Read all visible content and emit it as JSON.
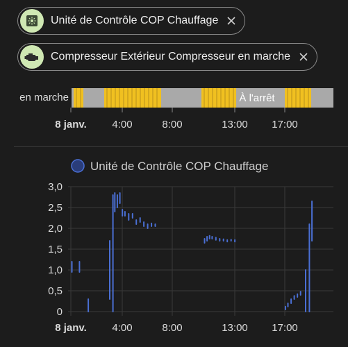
{
  "chips": [
    {
      "label": "Unité de Contrôle COP Chauffage",
      "icon": "gauge-square-icon"
    },
    {
      "label": "Compresseur Extérieur Compresseur en marche",
      "icon": "engine-icon"
    }
  ],
  "timeline": {
    "state_label": "en marche",
    "off_label": "À l'arrêt",
    "on_color": "#f0c020",
    "off_color": "#a9a9a9",
    "x_ticks": [
      "8 janv.",
      "4:00",
      "8:00",
      "13:00",
      "17:00"
    ]
  },
  "chart_data": {
    "type": "line",
    "title": "Unité de Contrôle COP Chauffage",
    "legend": [
      "Unité de Contrôle COP Chauffage"
    ],
    "series_color": "#4a6fd4",
    "y_ticks": [
      "3,0",
      "2,5",
      "2,0",
      "1,5",
      "1,0",
      "0,5",
      "0"
    ],
    "ylim": [
      0,
      3
    ],
    "x_ticks": [
      "8 janv.",
      "4:00",
      "8:00",
      "13:00",
      "17:00"
    ],
    "x_unit": "hours since 8 janv. 0:00",
    "xlim": [
      -0.1,
      20.9
    ],
    "series": [
      {
        "name": "Unité de Contrôle COP Chauffage",
        "segments": [
          [
            [
              0.2,
              0.95
            ],
            [
              0.2,
              1.2
            ]
          ],
          [
            [
              0.8,
              0.95
            ],
            [
              0.8,
              1.2
            ]
          ],
          [
            [
              1.5,
              0.0
            ],
            [
              1.5,
              0.3
            ]
          ],
          [
            [
              3.2,
              0.3
            ],
            [
              3.2,
              1.7
            ]
          ],
          [
            [
              3.45,
              0.0
            ],
            [
              3.45,
              2.8
            ]
          ],
          [
            [
              3.6,
              2.4
            ],
            [
              3.6,
              2.85
            ]
          ],
          [
            [
              3.8,
              2.5
            ],
            [
              3.8,
              2.8
            ]
          ],
          [
            [
              4.0,
              2.6
            ],
            [
              4.0,
              2.85
            ]
          ],
          [
            [
              4.2,
              2.3
            ],
            [
              4.2,
              2.45
            ]
          ],
          [
            [
              4.4,
              2.3
            ],
            [
              4.4,
              2.4
            ]
          ],
          [
            [
              4.7,
              2.2
            ],
            [
              4.7,
              2.35
            ]
          ],
          [
            [
              5.0,
              2.25
            ],
            [
              5.0,
              2.35
            ]
          ],
          [
            [
              5.3,
              2.1
            ],
            [
              5.3,
              2.2
            ]
          ],
          [
            [
              5.6,
              2.15
            ],
            [
              5.6,
              2.25
            ]
          ],
          [
            [
              5.9,
              2.05
            ],
            [
              5.9,
              2.15
            ]
          ],
          [
            [
              6.2,
              2.0
            ],
            [
              6.2,
              2.1
            ]
          ],
          [
            [
              6.5,
              2.05
            ],
            [
              6.5,
              2.12
            ]
          ],
          [
            [
              6.8,
              2.05
            ],
            [
              6.8,
              2.1
            ]
          ],
          [
            [
              10.7,
              1.65
            ],
            [
              10.7,
              1.75
            ]
          ],
          [
            [
              10.9,
              1.7
            ],
            [
              10.9,
              1.8
            ]
          ],
          [
            [
              11.1,
              1.75
            ],
            [
              11.1,
              1.82
            ]
          ],
          [
            [
              11.3,
              1.75
            ],
            [
              11.3,
              1.8
            ]
          ],
          [
            [
              11.6,
              1.72
            ],
            [
              11.6,
              1.78
            ]
          ],
          [
            [
              11.9,
              1.7
            ],
            [
              11.9,
              1.75
            ]
          ],
          [
            [
              12.2,
              1.7
            ],
            [
              12.2,
              1.74
            ]
          ],
          [
            [
              12.5,
              1.68
            ],
            [
              12.5,
              1.72
            ]
          ],
          [
            [
              12.8,
              1.7
            ],
            [
              12.8,
              1.73
            ]
          ],
          [
            [
              13.1,
              1.68
            ],
            [
              13.1,
              1.72
            ]
          ],
          [
            [
              17.1,
              0.05
            ],
            [
              17.1,
              0.12
            ]
          ],
          [
            [
              17.3,
              0.12
            ],
            [
              17.3,
              0.2
            ]
          ],
          [
            [
              17.55,
              0.2
            ],
            [
              17.55,
              0.3
            ]
          ],
          [
            [
              17.8,
              0.3
            ],
            [
              17.8,
              0.38
            ]
          ],
          [
            [
              18.05,
              0.35
            ],
            [
              18.05,
              0.42
            ]
          ],
          [
            [
              18.3,
              0.4
            ],
            [
              18.3,
              0.48
            ]
          ],
          [
            [
              18.7,
              0.0
            ],
            [
              18.7,
              1.0
            ]
          ],
          [
            [
              19.0,
              0.0
            ],
            [
              19.0,
              2.1
            ]
          ],
          [
            [
              19.2,
              1.7
            ],
            [
              19.2,
              2.65
            ]
          ]
        ]
      }
    ]
  }
}
